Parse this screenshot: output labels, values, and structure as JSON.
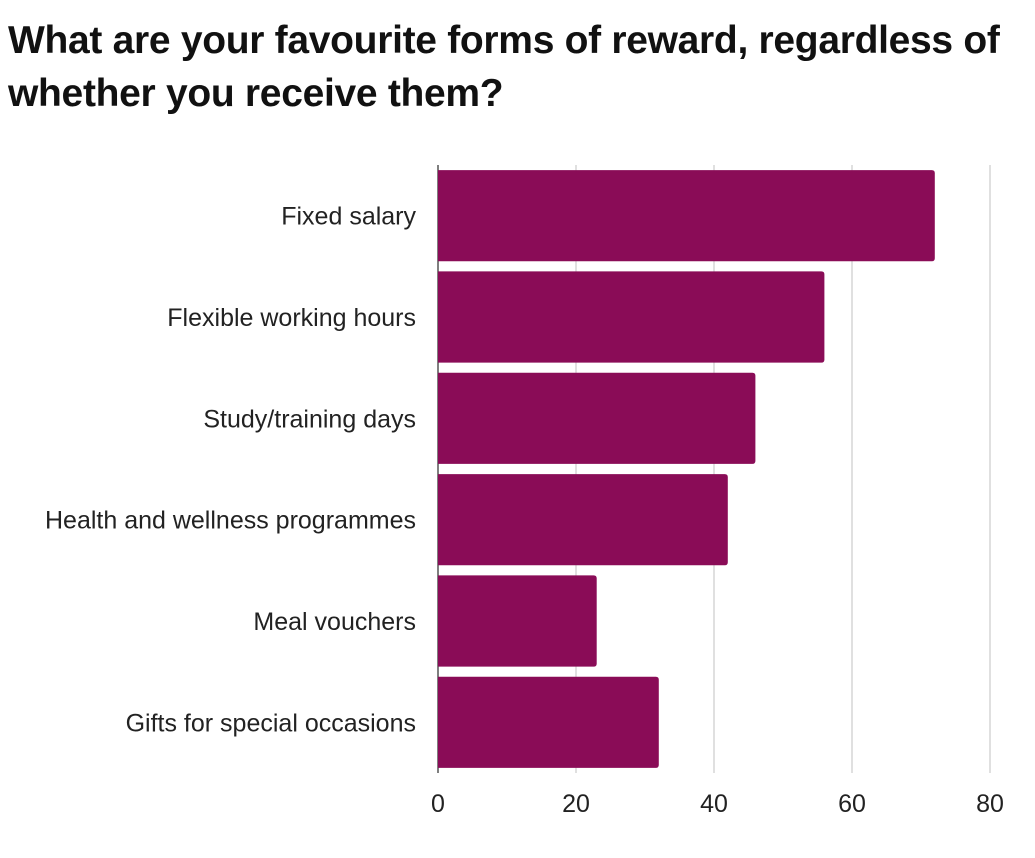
{
  "chart_data": {
    "type": "bar",
    "orientation": "horizontal",
    "title": "What are your favourite forms of reward, regardless of whether you receive them?",
    "categories": [
      "Fixed salary",
      "Flexible working hours",
      "Study/training days",
      "Health and wellness programmes",
      "Meal vouchers",
      "Gifts for special occasions"
    ],
    "values": [
      72,
      56,
      46,
      42,
      23,
      32
    ],
    "xlim": [
      0,
      80
    ],
    "xticks": [
      "0",
      "20",
      "40",
      "60",
      "80"
    ],
    "grid": true,
    "legend": "none",
    "bar_color": "#8a0c57",
    "grid_color": "#cccccc"
  }
}
